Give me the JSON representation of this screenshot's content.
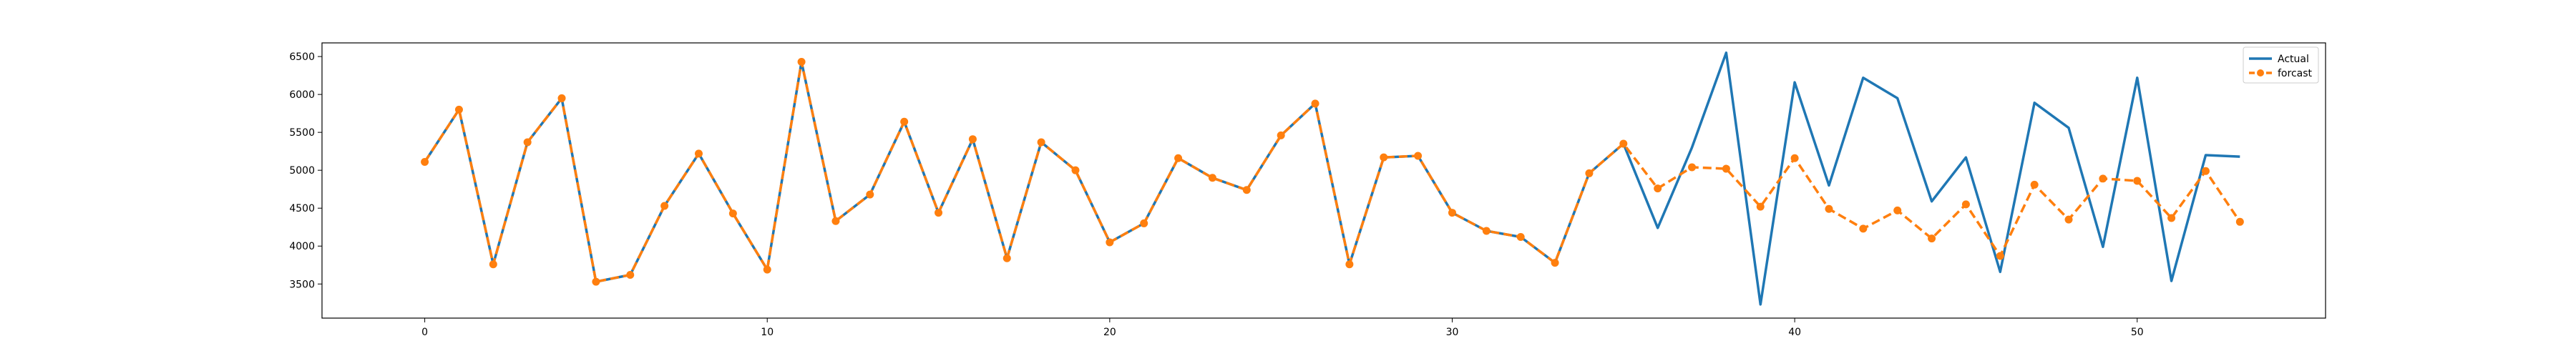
{
  "chart_data": {
    "type": "line",
    "title": "",
    "xlabel": "",
    "ylabel": "",
    "xlim": [
      -3,
      55.5
    ],
    "ylim": [
      3050,
      6680
    ],
    "xticks": [
      0,
      10,
      20,
      30,
      40,
      50
    ],
    "yticks": [
      3500,
      4000,
      4500,
      5000,
      5500,
      6000,
      6500
    ],
    "grid": false,
    "legend": {
      "placement": "top-right"
    },
    "x": [
      0,
      1,
      2,
      3,
      4,
      5,
      6,
      7,
      8,
      9,
      10,
      11,
      12,
      13,
      14,
      15,
      16,
      17,
      18,
      19,
      20,
      21,
      22,
      23,
      24,
      25,
      26,
      27,
      28,
      29,
      30,
      31,
      32,
      33,
      34,
      35,
      36,
      37,
      38,
      39,
      40,
      41,
      42,
      43,
      44,
      45,
      46,
      47,
      48,
      49,
      50,
      51,
      52,
      53
    ],
    "series": [
      {
        "name": "Actual",
        "color": "#1f77b4",
        "style": "solid",
        "values": [
          5110,
          5800,
          3760,
          5370,
          5950,
          3530,
          3620,
          4530,
          5220,
          4430,
          3690,
          6430,
          4330,
          4680,
          5640,
          4440,
          5410,
          3840,
          5370,
          5000,
          4050,
          4300,
          5160,
          4900,
          4740,
          5460,
          5880,
          3760,
          5170,
          5190,
          4440,
          4200,
          4120,
          3780,
          4960,
          5350,
          4240,
          5300,
          6550,
          3230,
          6160,
          4800,
          6220,
          5950,
          4590,
          5170,
          3660,
          5890,
          5560,
          3990,
          6220,
          3540,
          5200,
          5180
        ]
      },
      {
        "name": "forcast",
        "color": "#ff7f0e",
        "style": "dashed",
        "marker": "circle",
        "values": [
          5110,
          5800,
          3760,
          5370,
          5950,
          3530,
          3620,
          4530,
          5220,
          4430,
          3690,
          6430,
          4330,
          4680,
          5640,
          4440,
          5410,
          3840,
          5370,
          5000,
          4050,
          4300,
          5160,
          4900,
          4740,
          5460,
          5880,
          3760,
          5170,
          5190,
          4440,
          4200,
          4120,
          3780,
          4960,
          5350,
          4760,
          5040,
          5020,
          4520,
          5160,
          4490,
          4230,
          4470,
          4100,
          4550,
          3870,
          4810,
          4350,
          4890,
          4860,
          4370,
          4990,
          4320
        ]
      }
    ]
  }
}
